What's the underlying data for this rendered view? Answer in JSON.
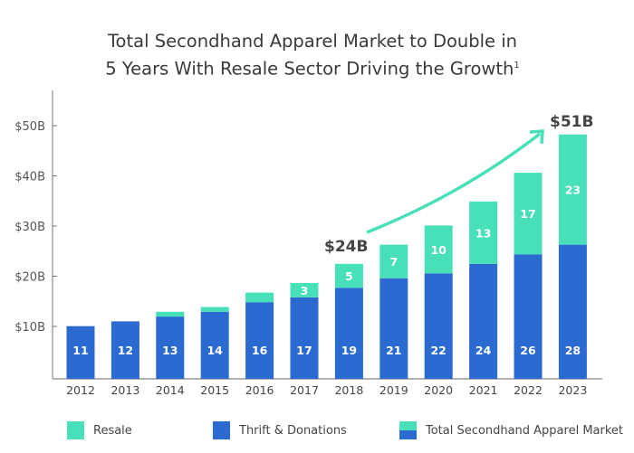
{
  "chart_data": {
    "type": "bar",
    "stacked": true,
    "title_line1": "Total Secondhand Apparel Market to Double in",
    "title_line2": "5 Years With Resale Sector Driving the Growth",
    "title_footnote": "1",
    "categories": [
      "2012",
      "2013",
      "2014",
      "2015",
      "2016",
      "2017",
      "2018",
      "2019",
      "2020",
      "2021",
      "2022",
      "2023"
    ],
    "series": [
      {
        "name": "Thrift & Donations",
        "color": "#2B6BD1",
        "values": [
          11,
          12,
          13,
          14,
          16,
          17,
          19,
          21,
          22,
          24,
          26,
          28
        ]
      },
      {
        "name": "Resale",
        "color": "#48E0B8",
        "values": [
          0,
          0,
          1,
          1,
          2,
          3,
          5,
          7,
          10,
          13,
          17,
          23
        ]
      }
    ],
    "resale_labels_shown": [
      "",
      "",
      "",
      "",
      "",
      "3",
      "5",
      "7",
      "10",
      "13",
      "17",
      "23"
    ],
    "yticks": [
      "$10B",
      "$20B",
      "$30B",
      "$40B",
      "$50B"
    ],
    "ytick_values": [
      10,
      20,
      30,
      40,
      50
    ],
    "ylim": [
      0,
      57
    ],
    "grid": false,
    "annotations": {
      "start": "$24B",
      "end": "$51B",
      "arrow_color": "#48E0B8"
    },
    "legend": {
      "position": "bottom",
      "items": [
        "Resale",
        "Thrift & Donations",
        "Total Secondhand Apparel Market"
      ]
    }
  }
}
